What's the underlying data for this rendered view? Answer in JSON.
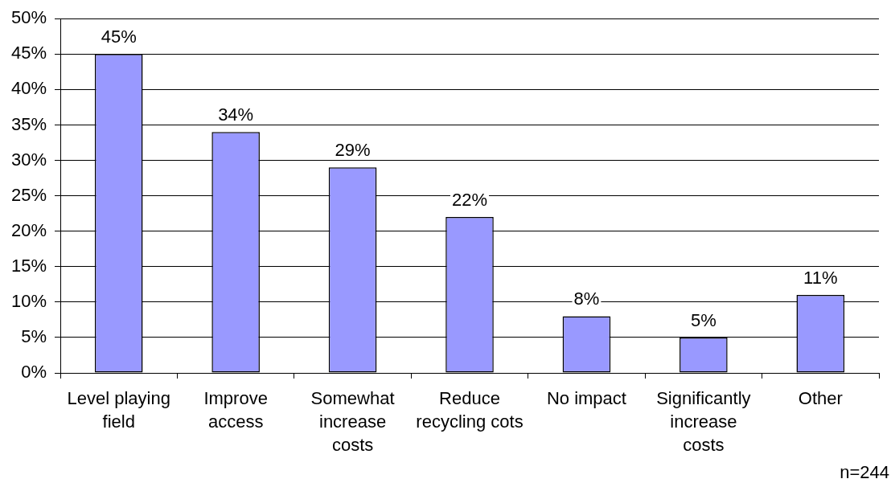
{
  "chart_data": {
    "type": "bar",
    "categories": [
      "Level playing field",
      "Improve access",
      "Somewhat increase costs",
      "Reduce recycling cots",
      "No impact",
      "Significantly increase costs",
      "Other"
    ],
    "values": [
      45,
      34,
      29,
      22,
      8,
      5,
      11
    ],
    "value_labels": [
      "45%",
      "34%",
      "29%",
      "22%",
      "8%",
      "5%",
      "11%"
    ],
    "color": "#9999ff",
    "ylim": [
      0,
      50
    ],
    "yticks": [
      {
        "value": 0,
        "label": "0%"
      },
      {
        "value": 5,
        "label": "5%"
      },
      {
        "value": 10,
        "label": "10%"
      },
      {
        "value": 15,
        "label": "15%"
      },
      {
        "value": 20,
        "label": "20%"
      },
      {
        "value": 25,
        "label": "25%"
      },
      {
        "value": 30,
        "label": "30%"
      },
      {
        "value": 35,
        "label": "35%"
      },
      {
        "value": 40,
        "label": "40%"
      },
      {
        "value": 45,
        "label": "45%"
      },
      {
        "value": 50,
        "label": "50%"
      }
    ],
    "grid": "y",
    "legend": false,
    "annotations": [
      "n=244"
    ]
  }
}
